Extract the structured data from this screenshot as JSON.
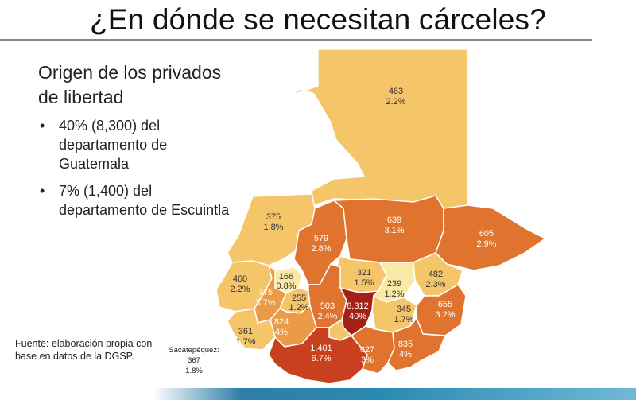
{
  "title": "¿En dónde se necesitan cárceles?",
  "heading": "Origen de los privados de libertad",
  "bullets": [
    "40% (8,300) del departamento de Guatemala",
    "7% (1,400) del departamento de Escuintla"
  ],
  "source": "Fuente: elaboración propia con base en datos de la DGSP.",
  "sacatepequez_label": {
    "name": "Sacatepéquez:",
    "value": "367",
    "percent": "1.8%"
  },
  "colors": {
    "lightest": "#fbe9a8",
    "light": "#f5c56a",
    "mid": "#eb9b45",
    "orange": "#e0742f",
    "dark": "#c8401e",
    "darkest": "#a42017"
  },
  "departments": [
    {
      "value": "463",
      "percent": "2.2%"
    },
    {
      "value": "375",
      "percent": "1.8%"
    },
    {
      "value": "639",
      "percent": "3.1%"
    },
    {
      "value": "605",
      "percent": "2.9%"
    },
    {
      "value": "579",
      "percent": "2.8%"
    },
    {
      "value": "460",
      "percent": "2.2%"
    },
    {
      "value": "166",
      "percent": "0.8%"
    },
    {
      "value": "775",
      "percent": "3.7%"
    },
    {
      "value": "255",
      "percent": "1.2%"
    },
    {
      "value": "321",
      "percent": "1.5%"
    },
    {
      "value": "239",
      "percent": "1.2%"
    },
    {
      "value": "482",
      "percent": "2.3%"
    },
    {
      "value": "503",
      "percent": "2.4%"
    },
    {
      "value": "8,312",
      "percent": "40%"
    },
    {
      "value": "345",
      "percent": "1.7%"
    },
    {
      "value": "655",
      "percent": "3.2%"
    },
    {
      "value": "824",
      "percent": "4%"
    },
    {
      "value": "361",
      "percent": "1.7%"
    },
    {
      "value": "1,401",
      "percent": "6.7%"
    },
    {
      "value": "627",
      "percent": "3%"
    },
    {
      "value": "835",
      "percent": "4%"
    }
  ]
}
